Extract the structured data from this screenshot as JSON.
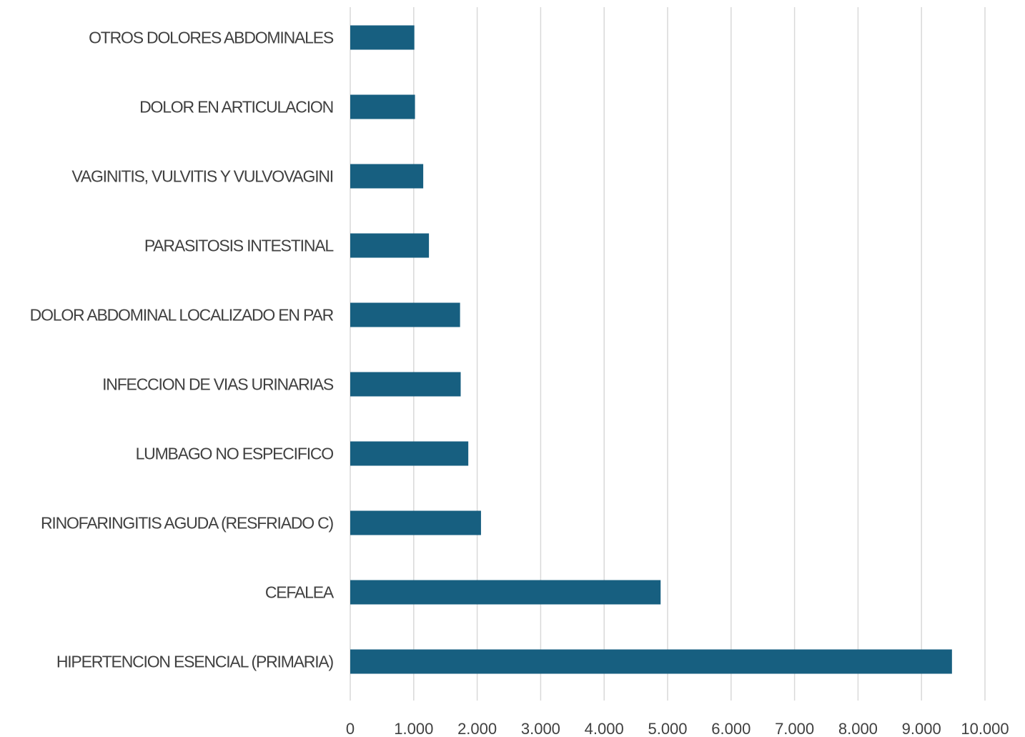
{
  "chart_data": {
    "type": "bar",
    "orientation": "horizontal",
    "categories": [
      "HIPERTENCION ESENCIAL (PRIMARIA)",
      "CEFALEA",
      "RINOFARINGITIS AGUDA (RESFRIADO C)",
      "LUMBAGO NO ESPECIFICO",
      "INFECCION DE VIAS URINARIAS",
      "DOLOR ABDOMINAL LOCALIZADO EN PAR",
      "PARASITOSIS INTESTINAL",
      "VAGINITIS, VULVITIS Y VULVOVAGINI",
      "DOLOR EN ARTICULACION",
      "OTROS DOLORES ABDOMINALES"
    ],
    "values": [
      9480,
      4890,
      2060,
      1860,
      1740,
      1730,
      1240,
      1150,
      1020,
      1010
    ],
    "xlim": [
      0,
      10000
    ],
    "x_ticks": [
      0,
      1000,
      2000,
      3000,
      4000,
      5000,
      6000,
      7000,
      8000,
      9000,
      10000
    ],
    "x_tick_labels": [
      "0",
      "1.000",
      "2.000",
      "3.000",
      "4.000",
      "5.000",
      "6.000",
      "7.000",
      "8.000",
      "9.000",
      "10.000"
    ],
    "title": "",
    "xlabel": "",
    "ylabel": "",
    "grid": "vertical",
    "legend": "none",
    "bar_color": "#175f80"
  }
}
